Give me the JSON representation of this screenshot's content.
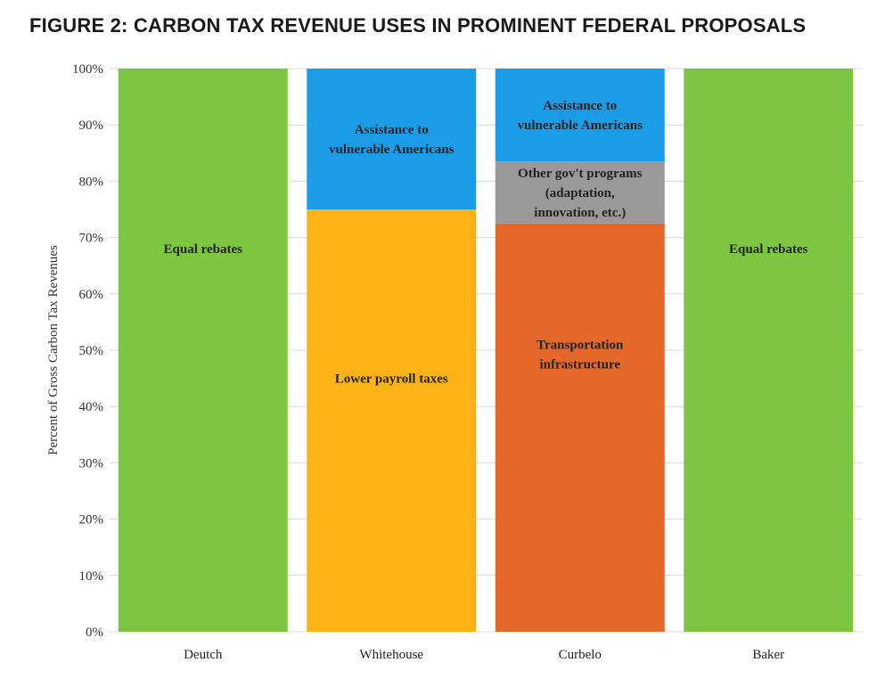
{
  "title": "FIGURE 2: CARBON TAX REVENUE USES IN PROMINENT FEDERAL PROPOSALS",
  "colors": {
    "green": "#7dc642",
    "blue": "#1a9de6",
    "yellow": "#fcb315",
    "orange": "#e4682a",
    "gray": "#999999"
  },
  "chart_data": {
    "type": "bar",
    "stacked": true,
    "title": "FIGURE 2: CARBON TAX REVENUE USES IN PROMINENT FEDERAL PROPOSALS",
    "xlabel": "",
    "ylabel": "Percent of Gross Carbon Tax Revenues",
    "ylim": [
      0,
      100
    ],
    "yticks": [
      "0%",
      "10%",
      "20%",
      "30%",
      "40%",
      "50%",
      "60%",
      "70%",
      "80%",
      "90%",
      "100%"
    ],
    "grid": true,
    "categories": [
      "Deutch",
      "Whitehouse",
      "Curbelo",
      "Baker"
    ],
    "bars": [
      {
        "category": "Deutch",
        "segments": [
          {
            "label": [
              "Equal rebates"
            ],
            "value": 100,
            "color": "#7dc642"
          }
        ]
      },
      {
        "category": "Whitehouse",
        "segments": [
          {
            "label": [
              "Lower payroll taxes"
            ],
            "value": 75,
            "color": "#fcb315"
          },
          {
            "label": [
              "Assistance to",
              "vulnerable Americans"
            ],
            "value": 25,
            "color": "#1a9de6"
          }
        ]
      },
      {
        "category": "Curbelo",
        "segments": [
          {
            "label": [
              "Transportation",
              "infrastructure"
            ],
            "value": 72.5,
            "color": "#e4682a"
          },
          {
            "label": [
              "Other gov't programs",
              "(adaptation,",
              "innovation, etc.)"
            ],
            "value": 11,
            "color": "#999999"
          },
          {
            "label": [
              "Assistance to",
              "vulnerable Americans"
            ],
            "value": 16.5,
            "color": "#1a9de6"
          }
        ]
      },
      {
        "category": "Baker",
        "segments": [
          {
            "label": [
              "Equal rebates"
            ],
            "value": 100,
            "color": "#7dc642"
          }
        ]
      }
    ]
  }
}
